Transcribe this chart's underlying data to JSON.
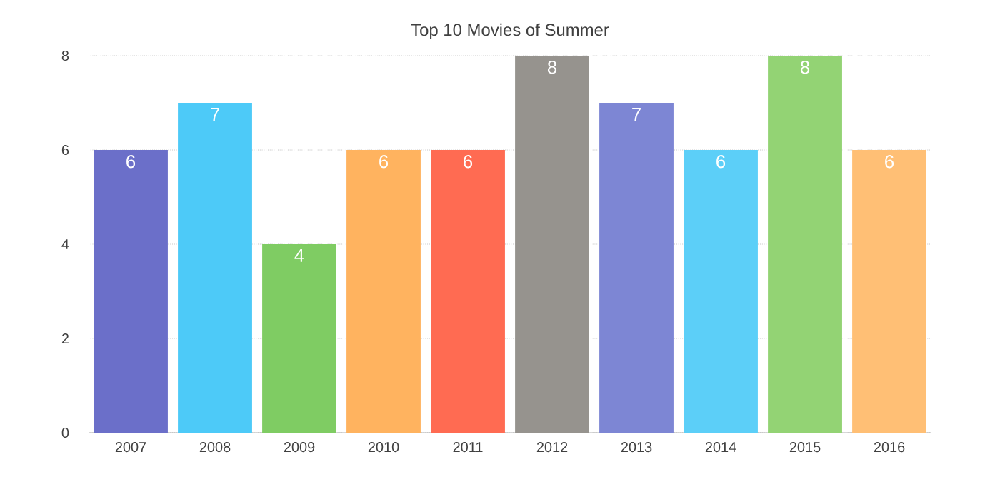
{
  "chart_data": {
    "type": "bar",
    "title": "Top 10 Movies of Summer",
    "categories": [
      "2007",
      "2008",
      "2009",
      "2010",
      "2011",
      "2012",
      "2013",
      "2014",
      "2015",
      "2016"
    ],
    "values": [
      6,
      7,
      4,
      6,
      6,
      8,
      7,
      6,
      8,
      6
    ],
    "colors": [
      "#6b6fc9",
      "#4dcaf8",
      "#7fcc63",
      "#ffb35f",
      "#ff6b52",
      "#96938e",
      "#7d86d4",
      "#5ccff8",
      "#93d374",
      "#ffbf75"
    ],
    "ylim": [
      0,
      8
    ],
    "yticks": [
      0,
      2,
      4,
      6,
      8
    ],
    "grid": "y",
    "data_labels": true
  }
}
